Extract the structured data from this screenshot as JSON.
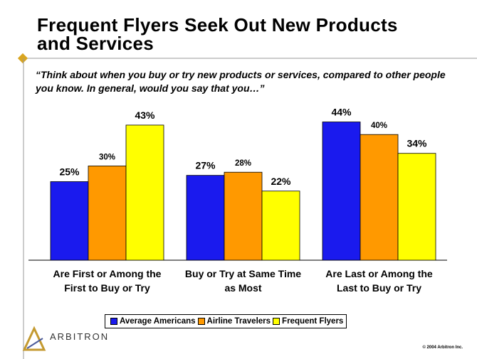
{
  "chart_data": {
    "type": "bar",
    "title": "Frequent Flyers Seek Out New Products and Services",
    "subtitle": "“Think about when you buy or try new products or services, compared to other people you know. In general, would you say that you…”",
    "categories": [
      "Are First or Among the First to Buy or Try",
      "Buy or Try at Same Time as Most",
      "Are Last or Among the Last to Buy or Try"
    ],
    "series": [
      {
        "name": "Average Americans",
        "color": "#1a1aee",
        "values": [
          25,
          27,
          44
        ],
        "value_labels": [
          "25%",
          "27%",
          "44%"
        ]
      },
      {
        "name": "Airline Travelers",
        "color": "#ff9900",
        "values": [
          30,
          28,
          40
        ],
        "value_labels": [
          "30%",
          "28%",
          "40%"
        ]
      },
      {
        "name": "Frequent Flyers",
        "color": "#ffff00",
        "values": [
          43,
          22,
          34
        ],
        "value_labels": [
          "43%",
          "22%",
          "34%"
        ]
      }
    ],
    "ylim": [
      0,
      50
    ],
    "legend": "bottom",
    "logo": "ARBITRON",
    "copyright": "© 2004 Arbitron Inc."
  }
}
